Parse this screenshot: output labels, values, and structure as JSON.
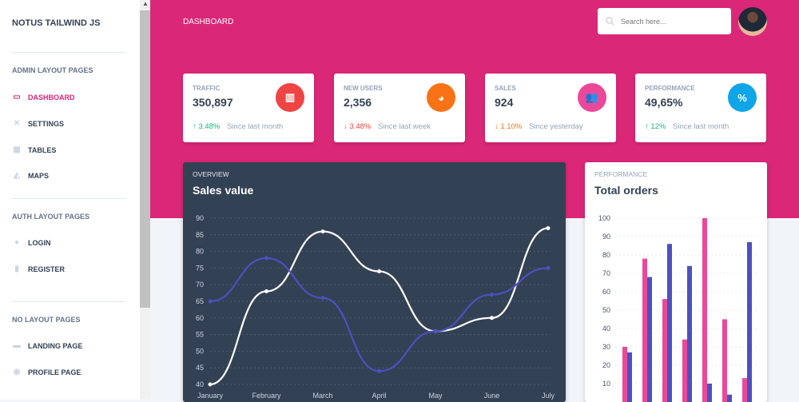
{
  "sidebar": {
    "brand": "NOTUS TAILWIND JS",
    "sections": [
      {
        "title": "ADMIN LAYOUT PAGES"
      },
      {
        "title": "AUTH LAYOUT PAGES"
      },
      {
        "title": "NO LAYOUT PAGES"
      }
    ],
    "items": [
      {
        "label": "DASHBOARD",
        "icon": "tv-icon"
      },
      {
        "label": "SETTINGS",
        "icon": "tools-icon"
      },
      {
        "label": "TABLES",
        "icon": "table-icon"
      },
      {
        "label": "MAPS",
        "icon": "map-icon"
      },
      {
        "label": "LOGIN",
        "icon": "fingerprint-icon"
      },
      {
        "label": "REGISTER",
        "icon": "clipboard-icon"
      },
      {
        "label": "LANDING PAGE",
        "icon": "newspaper-icon"
      },
      {
        "label": "PROFILE PAGE",
        "icon": "user-circle-icon"
      }
    ]
  },
  "header": {
    "title": "DASHBOARD",
    "search_placeholder": "Search here..."
  },
  "colors": {
    "brand": "#db2777",
    "dark_panel": "#334155",
    "bar_pink": "#ec4899",
    "bar_indigo": "#4c51bf"
  },
  "stats": [
    {
      "label": "TRAFFIC",
      "value": "350,897",
      "change": "3.48%",
      "direction": "up",
      "since": "Since last month",
      "icon": "chart-bar-icon",
      "color": "#ef4444",
      "change_color": "#10b981"
    },
    {
      "label": "NEW USERS",
      "value": "2,356",
      "change": "3.48%",
      "direction": "down",
      "since": "Since last week",
      "icon": "chart-pie-icon",
      "color": "#f97316",
      "change_color": "#ef4444"
    },
    {
      "label": "SALES",
      "value": "924",
      "change": "1.10%",
      "direction": "down",
      "since": "Since yesterday",
      "icon": "users-icon",
      "color": "#ec4899",
      "change_color": "#f97316"
    },
    {
      "label": "PERFORMANCE",
      "value": "49,65%",
      "change": "12%",
      "direction": "up",
      "since": "Since last month",
      "icon": "percent-icon",
      "color": "#0ea5e9",
      "change_color": "#10b981"
    }
  ],
  "chart_data": [
    {
      "type": "line",
      "tag": "OVERVIEW",
      "title": "Sales value",
      "categories": [
        "January",
        "February",
        "March",
        "April",
        "May",
        "June",
        "July"
      ],
      "ylim": [
        40,
        90
      ],
      "yticks": [
        "90",
        "85",
        "80",
        "75",
        "70",
        "65",
        "60",
        "55",
        "50",
        "45",
        "40"
      ],
      "grid": true,
      "series": [
        {
          "color": "#ffffff",
          "values": [
            40,
            68,
            86,
            74,
            56,
            60,
            87
          ]
        },
        {
          "color": "#4c51bf",
          "values": [
            65,
            78,
            66,
            44,
            56,
            67,
            75
          ]
        }
      ]
    },
    {
      "type": "bar",
      "tag": "PERFORMANCE",
      "title": "Total orders",
      "ylim": [
        0,
        100
      ],
      "yticks": [
        "100",
        "90",
        "80",
        "70",
        "60",
        "50",
        "40",
        "30",
        "20",
        "10"
      ],
      "grid": true,
      "series": [
        {
          "color": "#ec4899",
          "values": [
            30,
            78,
            56,
            34,
            100,
            45,
            13
          ]
        },
        {
          "color": "#4c51bf",
          "values": [
            27,
            68,
            86,
            74,
            10,
            4,
            87
          ]
        }
      ]
    }
  ]
}
